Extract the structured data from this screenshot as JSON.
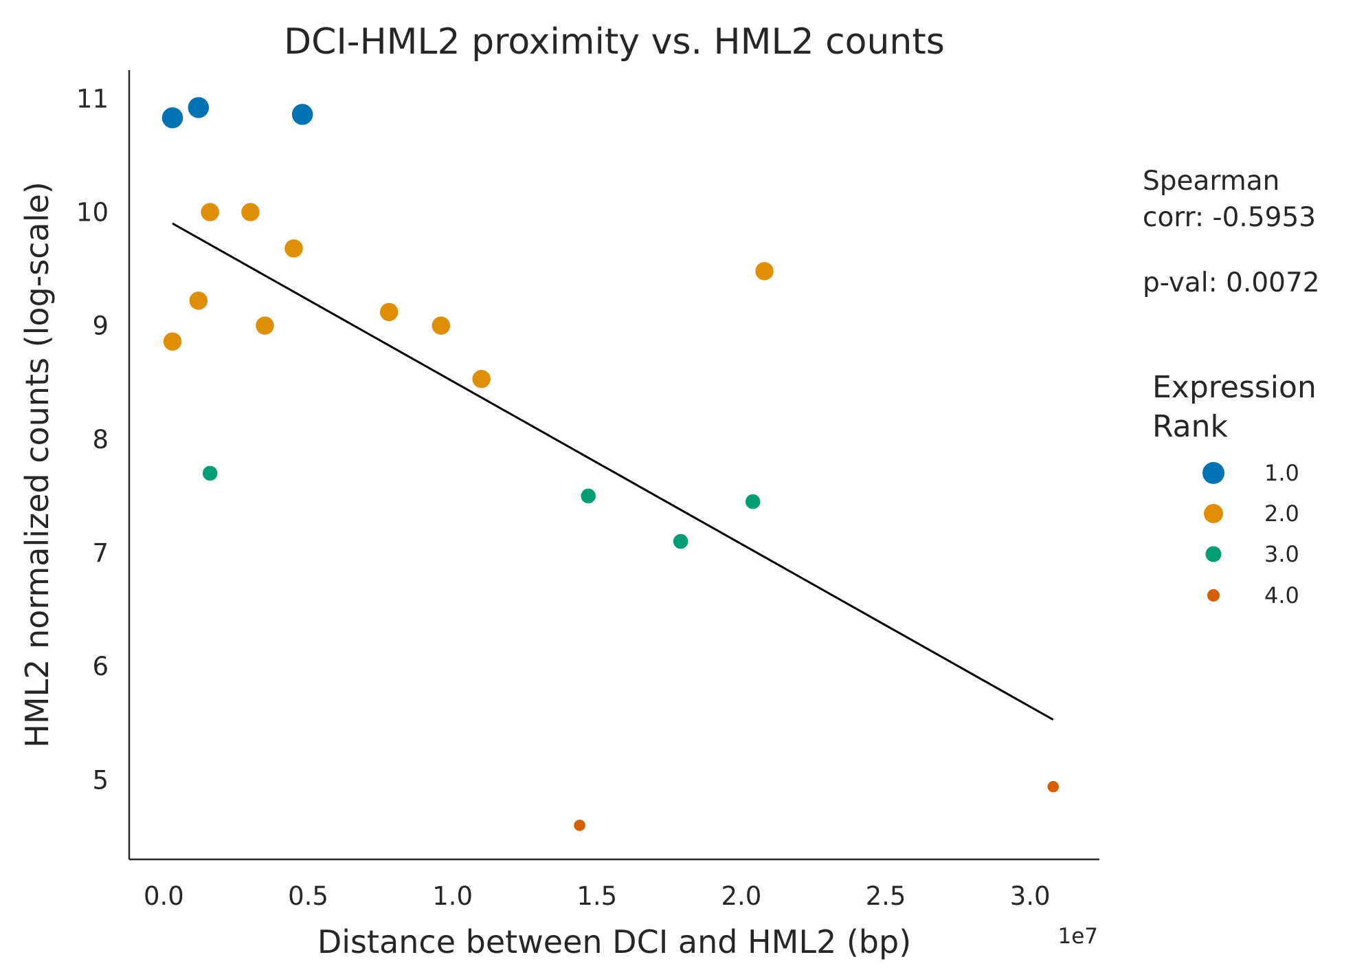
{
  "chart_data": {
    "type": "scatter",
    "title": "DCI-HML2 proximity vs. HML2 counts",
    "xlabel": "Distance between DCI and HML2 (bp)",
    "ylabel": "HML2 normalized counts (log-scale)",
    "x_offset_label": "1e7",
    "x_ticks": [
      0.0,
      0.5,
      1.0,
      1.5,
      2.0,
      2.5,
      3.0
    ],
    "x_tick_labels": [
      "0.0",
      "0.5",
      "1.0",
      "1.5",
      "2.0",
      "2.5",
      "3.0"
    ],
    "y_ticks": [
      5,
      6,
      7,
      8,
      9,
      10,
      11
    ],
    "y_tick_labels": [
      "5",
      "6",
      "7",
      "8",
      "9",
      "10",
      "11"
    ],
    "xlim": [
      -0.12,
      3.24
    ],
    "ylim": [
      4.3,
      11.25
    ],
    "x_units": "1e7 bp",
    "grid": false,
    "legend_position": "right",
    "legend_title": "Expression\nRank",
    "stats": {
      "line1": "Spearman",
      "line2": "corr: -0.5953",
      "line3": "p-val: 0.0072"
    },
    "series": [
      {
        "name": "1.0",
        "color": "#0173b2",
        "points": [
          {
            "x": 0.03,
            "y": 10.83
          },
          {
            "x": 0.12,
            "y": 10.92
          },
          {
            "x": 0.48,
            "y": 10.86
          }
        ]
      },
      {
        "name": "2.0",
        "color": "#de8f05",
        "points": [
          {
            "x": 0.16,
            "y": 10.0
          },
          {
            "x": 0.3,
            "y": 10.0
          },
          {
            "x": 0.45,
            "y": 9.68
          },
          {
            "x": 0.12,
            "y": 9.22
          },
          {
            "x": 0.03,
            "y": 8.86
          },
          {
            "x": 0.35,
            "y": 9.0
          },
          {
            "x": 0.78,
            "y": 9.12
          },
          {
            "x": 0.96,
            "y": 9.0
          },
          {
            "x": 1.1,
            "y": 8.53
          },
          {
            "x": 2.08,
            "y": 9.48
          }
        ]
      },
      {
        "name": "3.0",
        "color": "#029e73",
        "points": [
          {
            "x": 0.16,
            "y": 7.7
          },
          {
            "x": 1.47,
            "y": 7.5
          },
          {
            "x": 1.79,
            "y": 7.1
          },
          {
            "x": 2.04,
            "y": 7.45
          }
        ]
      },
      {
        "name": "4.0",
        "color": "#d55e00",
        "points": [
          {
            "x": 1.44,
            "y": 4.6
          },
          {
            "x": 3.08,
            "y": 4.94
          }
        ]
      }
    ],
    "fit_line": {
      "color": "#000000",
      "x": [
        0.03,
        3.08
      ],
      "y": [
        9.9,
        5.53
      ]
    }
  }
}
